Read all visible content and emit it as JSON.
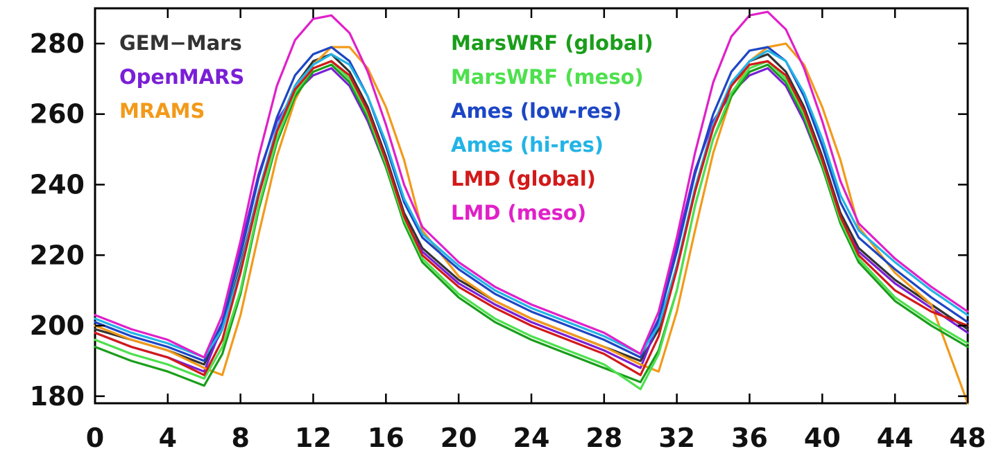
{
  "chart_data": {
    "type": "line",
    "title": "",
    "xlabel": "",
    "ylabel": "",
    "xlim": [
      0,
      48
    ],
    "ylim": [
      178,
      290
    ],
    "xticks": [
      0,
      4,
      8,
      12,
      16,
      20,
      24,
      28,
      32,
      36,
      40,
      44,
      48
    ],
    "yticks": [
      180,
      200,
      220,
      240,
      260,
      280
    ],
    "grid": false,
    "legend_placement": "top, inside plot, two columns",
    "x": [
      0,
      2,
      4,
      6,
      7,
      8,
      9,
      10,
      11,
      12,
      13,
      14,
      15,
      16,
      17,
      18,
      20,
      22,
      24,
      26,
      28,
      30,
      31,
      32,
      33,
      34,
      35,
      36,
      37,
      38,
      39,
      40,
      41,
      42,
      44,
      46,
      48
    ],
    "series": [
      {
        "name": "GEM−Mars",
        "color": "#333333",
        "values": [
          199,
          196,
          193,
          189,
          199,
          217,
          238,
          256,
          268,
          275,
          277,
          272,
          262,
          248,
          232,
          222,
          213,
          207,
          202,
          198,
          194,
          190,
          199,
          217,
          238,
          256,
          268,
          275,
          277,
          272,
          262,
          248,
          232,
          222,
          213,
          206,
          199
        ]
      },
      {
        "name": "OpenMARS",
        "color": "#7a1fd6",
        "values": [
          198,
          194,
          191,
          187,
          200,
          222,
          243,
          258,
          266,
          271,
          273,
          268,
          258,
          245,
          230,
          221,
          212,
          206,
          201,
          197,
          193,
          188,
          201,
          223,
          244,
          258,
          266,
          271,
          273,
          268,
          258,
          245,
          230,
          221,
          212,
          205,
          198
        ]
      },
      {
        "name": "MRAMS",
        "color": "#f29a1a",
        "values": [
          200,
          196,
          193,
          188,
          186,
          203,
          226,
          248,
          264,
          274,
          279,
          279,
          273,
          262,
          247,
          227,
          214,
          207,
          202,
          198,
          194,
          189,
          187,
          204,
          227,
          249,
          265,
          275,
          279,
          280,
          274,
          262,
          247,
          228,
          215,
          206,
          178
        ]
      },
      {
        "name": "MarsWRF (global)",
        "color": "#1a9e1a",
        "values": [
          194,
          190,
          187,
          183,
          192,
          209,
          233,
          252,
          265,
          272,
          274,
          269,
          259,
          245,
          229,
          218,
          208,
          201,
          196,
          192,
          188,
          184,
          193,
          210,
          234,
          253,
          265,
          272,
          274,
          269,
          259,
          245,
          229,
          218,
          207,
          200,
          194
        ]
      },
      {
        "name": "MarsWRF (meso)",
        "color": "#4ee04e",
        "values": [
          196,
          192,
          189,
          185,
          194,
          210,
          234,
          253,
          266,
          273,
          275,
          270,
          260,
          246,
          230,
          219,
          209,
          202,
          197,
          193,
          189,
          182,
          192,
          210,
          234,
          253,
          266,
          273,
          275,
          270,
          260,
          246,
          230,
          219,
          208,
          201,
          195
        ]
      },
      {
        "name": "Ames (low-res)",
        "color": "#1c46c4",
        "values": [
          201,
          197,
          194,
          190,
          201,
          220,
          242,
          259,
          271,
          277,
          279,
          275,
          265,
          251,
          235,
          225,
          216,
          209,
          204,
          200,
          196,
          191,
          202,
          221,
          243,
          260,
          272,
          278,
          279,
          275,
          265,
          251,
          235,
          225,
          216,
          208,
          201
        ]
      },
      {
        "name": "Ames (hi-res)",
        "color": "#22b4e6",
        "values": [
          202,
          198,
          195,
          191,
          199,
          216,
          238,
          256,
          268,
          274,
          277,
          274,
          265,
          252,
          236,
          226,
          217,
          210,
          205,
          201,
          197,
          192,
          200,
          217,
          239,
          257,
          269,
          275,
          278,
          275,
          266,
          253,
          237,
          227,
          218,
          210,
          203
        ]
      },
      {
        "name": "LMD (global)",
        "color": "#d21a1a",
        "values": [
          198,
          194,
          191,
          186,
          196,
          215,
          237,
          255,
          267,
          273,
          275,
          271,
          261,
          247,
          231,
          220,
          211,
          205,
          200,
          196,
          192,
          186,
          197,
          216,
          238,
          256,
          268,
          274,
          275,
          271,
          261,
          247,
          231,
          220,
          210,
          204,
          200
        ]
      },
      {
        "name": "LMD (meso)",
        "color": "#e020c8",
        "values": [
          203,
          199,
          196,
          191,
          203,
          224,
          248,
          268,
          281,
          287,
          288,
          283,
          272,
          257,
          240,
          228,
          218,
          211,
          206,
          202,
          198,
          192,
          204,
          225,
          249,
          269,
          282,
          288,
          289,
          284,
          273,
          258,
          241,
          229,
          219,
          211,
          204
        ]
      }
    ],
    "legend_columns": [
      [
        "GEM−Mars",
        "OpenMARS",
        "MRAMS"
      ],
      [
        "MarsWRF (global)",
        "MarsWRF (meso)",
        "Ames (low-res)",
        "Ames (hi-res)",
        "LMD (global)",
        "LMD (meso)"
      ]
    ]
  }
}
